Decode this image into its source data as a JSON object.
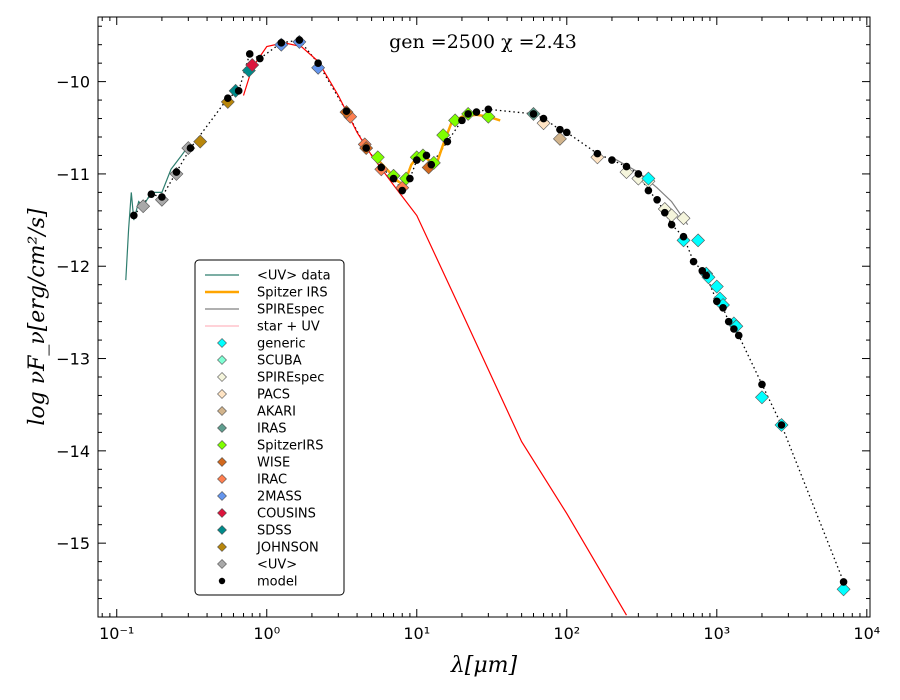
{
  "chart_data": {
    "type": "line",
    "title": "",
    "annotation": "gen =2500  χ =2.43",
    "xlabel": "λ[μm]",
    "ylabel": "log νF_ν[erg/cm²/s]",
    "xscale": "log",
    "xlim": [
      0.075,
      10500
    ],
    "ylim": [
      -15.8,
      -9.3
    ],
    "x_ticks": [
      {
        "value": 0.1,
        "label": "10⁻¹"
      },
      {
        "value": 1,
        "label": "10⁰"
      },
      {
        "value": 10,
        "label": "10¹"
      },
      {
        "value": 100,
        "label": "10²"
      },
      {
        "value": 1000,
        "label": "10³"
      },
      {
        "value": 10000,
        "label": "10⁴"
      }
    ],
    "y_ticks": [
      {
        "value": -10,
        "label": "−10"
      },
      {
        "value": -11,
        "label": "−11"
      },
      {
        "value": -12,
        "label": "−12"
      },
      {
        "value": -13,
        "label": "−13"
      },
      {
        "value": -14,
        "label": "−14"
      },
      {
        "value": -15,
        "label": "−15"
      }
    ],
    "legend_position": "lower-left",
    "legend": [
      {
        "label": "<UV> data",
        "kind": "line",
        "color": "#2e7d6e"
      },
      {
        "label": "Spitzer IRS",
        "kind": "line",
        "color": "#ffa500"
      },
      {
        "label": "SPIREspec",
        "kind": "line",
        "color": "#808080"
      },
      {
        "label": "star + UV",
        "kind": "line",
        "color": "#ffb6c1"
      },
      {
        "label": "generic",
        "kind": "diamond",
        "color": "#00ffff"
      },
      {
        "label": "SCUBA",
        "kind": "diamond",
        "color": "#7fffd4"
      },
      {
        "label": "SPIREspec",
        "kind": "diamond",
        "color": "#f5f5dc"
      },
      {
        "label": "PACS",
        "kind": "diamond",
        "color": "#ffe4c4"
      },
      {
        "label": "AKARI",
        "kind": "diamond",
        "color": "#d2b48c"
      },
      {
        "label": "IRAS",
        "kind": "diamond",
        "color": "#5f9e8f"
      },
      {
        "label": "SpitzerIRS",
        "kind": "diamond",
        "color": "#7fff00"
      },
      {
        "label": "WISE",
        "kind": "diamond",
        "color": "#d2691e"
      },
      {
        "label": "IRAC",
        "kind": "diamond",
        "color": "#ff7f50"
      },
      {
        "label": "2MASS",
        "kind": "diamond",
        "color": "#6495ed"
      },
      {
        "label": "COUSINS",
        "kind": "diamond",
        "color": "#dc143c"
      },
      {
        "label": "SDSS",
        "kind": "diamond",
        "color": "#008b8b"
      },
      {
        "label": "JOHNSON",
        "kind": "diamond",
        "color": "#b8860b"
      },
      {
        "label": "<UV>",
        "kind": "diamond",
        "color": "#a9a9a9"
      },
      {
        "label": "model",
        "kind": "dot",
        "color": "#000000"
      }
    ],
    "series": [
      {
        "name": "model",
        "kind": "dotted-line-points",
        "color": "#000000",
        "points": [
          [
            0.13,
            -11.45
          ],
          [
            0.17,
            -11.22
          ],
          [
            0.2,
            -11.25
          ],
          [
            0.25,
            -10.98
          ],
          [
            0.31,
            -10.72
          ],
          [
            0.55,
            -10.18
          ],
          [
            0.65,
            -10.1
          ],
          [
            0.77,
            -9.7
          ],
          [
            0.9,
            -9.75
          ],
          [
            1.25,
            -9.58
          ],
          [
            1.65,
            -9.55
          ],
          [
            2.2,
            -9.8
          ],
          [
            3.4,
            -10.32
          ],
          [
            4.6,
            -10.72
          ],
          [
            5.8,
            -10.93
          ],
          [
            7,
            -11.05
          ],
          [
            8,
            -11.18
          ],
          [
            9,
            -11.05
          ],
          [
            10,
            -10.85
          ],
          [
            11.6,
            -10.8
          ],
          [
            12.5,
            -10.9
          ],
          [
            16,
            -10.65
          ],
          [
            20,
            -10.42
          ],
          [
            22,
            -10.35
          ],
          [
            25,
            -10.33
          ],
          [
            30,
            -10.3
          ],
          [
            60,
            -10.35
          ],
          [
            70,
            -10.4
          ],
          [
            90,
            -10.52
          ],
          [
            100,
            -10.55
          ],
          [
            160,
            -10.78
          ],
          [
            200,
            -10.85
          ],
          [
            250,
            -10.92
          ],
          [
            300,
            -11.0
          ],
          [
            350,
            -11.18
          ],
          [
            400,
            -11.28
          ],
          [
            450,
            -11.42
          ],
          [
            500,
            -11.55
          ],
          [
            600,
            -11.68
          ],
          [
            700,
            -11.95
          ],
          [
            800,
            -12.05
          ],
          [
            850,
            -12.1
          ],
          [
            1000,
            -12.38
          ],
          [
            1100,
            -12.45
          ],
          [
            1200,
            -12.6
          ],
          [
            1300,
            -12.68
          ],
          [
            1400,
            -12.75
          ],
          [
            2000,
            -13.28
          ],
          [
            2700,
            -13.72
          ],
          [
            7000,
            -15.42
          ]
        ]
      },
      {
        "name": "star + UV",
        "kind": "line",
        "color": "#ff0000",
        "points": [
          [
            0.7,
            -10.15
          ],
          [
            0.8,
            -9.85
          ],
          [
            1.0,
            -9.62
          ],
          [
            1.3,
            -9.58
          ],
          [
            1.7,
            -9.62
          ],
          [
            2.2,
            -9.78
          ],
          [
            3.0,
            -10.15
          ],
          [
            4.0,
            -10.55
          ],
          [
            5.0,
            -10.8
          ],
          [
            7.0,
            -11.12
          ],
          [
            10.0,
            -11.45
          ],
          [
            20.0,
            -12.5
          ],
          [
            50.0,
            -13.9
          ],
          [
            100.0,
            -14.68
          ],
          [
            250.0,
            -15.78
          ]
        ]
      },
      {
        "name": "<UV> data",
        "kind": "line",
        "color": "#2e7d6e",
        "points": [
          [
            0.115,
            -12.15
          ],
          [
            0.12,
            -11.6
          ],
          [
            0.125,
            -11.2
          ],
          [
            0.13,
            -11.5
          ],
          [
            0.14,
            -11.3
          ],
          [
            0.15,
            -11.35
          ],
          [
            0.17,
            -11.2
          ],
          [
            0.2,
            -11.2
          ],
          [
            0.23,
            -10.95
          ],
          [
            0.27,
            -10.8
          ],
          [
            0.3,
            -10.7
          ]
        ]
      },
      {
        "name": "Spitzer IRS",
        "kind": "line",
        "color": "#ffa500",
        "points": [
          [
            5.3,
            -10.82
          ],
          [
            6.5,
            -10.97
          ],
          [
            7.5,
            -11.08
          ],
          [
            8.2,
            -11.12
          ],
          [
            9.2,
            -10.9
          ],
          [
            10.5,
            -10.78
          ],
          [
            12,
            -10.85
          ],
          [
            13.5,
            -10.9
          ],
          [
            15,
            -10.68
          ],
          [
            17,
            -10.45
          ],
          [
            20,
            -10.38
          ],
          [
            25,
            -10.36
          ],
          [
            30,
            -10.38
          ],
          [
            36,
            -10.42
          ]
        ]
      },
      {
        "name": "SPIREspec",
        "kind": "line",
        "color": "#808080",
        "points": [
          [
            200,
            -10.82
          ],
          [
            300,
            -10.98
          ],
          [
            400,
            -11.15
          ],
          [
            500,
            -11.3
          ],
          [
            640,
            -11.55
          ]
        ]
      }
    ],
    "markers": [
      {
        "group": "<UV>",
        "color": "#a9a9a9",
        "points": [
          [
            0.15,
            -11.35
          ],
          [
            0.2,
            -11.28
          ],
          [
            0.25,
            -11.0
          ],
          [
            0.3,
            -10.72
          ]
        ]
      },
      {
        "group": "JOHNSON",
        "color": "#b8860b",
        "points": [
          [
            0.36,
            -10.65
          ],
          [
            0.55,
            -10.22
          ]
        ]
      },
      {
        "group": "SDSS",
        "color": "#008b8b",
        "points": [
          [
            0.62,
            -10.1
          ],
          [
            0.76,
            -9.88
          ]
        ]
      },
      {
        "group": "COUSINS",
        "color": "#dc143c",
        "points": [
          [
            0.8,
            -9.82
          ]
        ]
      },
      {
        "group": "2MASS",
        "color": "#6495ed",
        "points": [
          [
            1.25,
            -9.6
          ],
          [
            1.65,
            -9.57
          ],
          [
            2.2,
            -9.85
          ]
        ]
      },
      {
        "group": "IRAC",
        "color": "#ff7f50",
        "points": [
          [
            3.6,
            -10.38
          ],
          [
            4.5,
            -10.68
          ],
          [
            5.8,
            -10.95
          ],
          [
            8.0,
            -11.15
          ]
        ]
      },
      {
        "group": "WISE",
        "color": "#d2691e",
        "points": [
          [
            3.4,
            -10.33
          ],
          [
            4.6,
            -10.72
          ],
          [
            12,
            -10.93
          ]
        ]
      },
      {
        "group": "SpitzerIRS",
        "color": "#7fff00",
        "points": [
          [
            5.5,
            -10.82
          ],
          [
            7.0,
            -11.02
          ],
          [
            8.5,
            -11.05
          ],
          [
            10,
            -10.82
          ],
          [
            11,
            -10.8
          ],
          [
            13,
            -10.88
          ],
          [
            15,
            -10.58
          ],
          [
            18,
            -10.42
          ],
          [
            22,
            -10.35
          ],
          [
            30,
            -10.38
          ]
        ]
      },
      {
        "group": "IRAS",
        "color": "#5f9e8f",
        "points": [
          [
            60,
            -10.35
          ]
        ]
      },
      {
        "group": "AKARI",
        "color": "#d2b48c",
        "points": [
          [
            90,
            -10.62
          ]
        ]
      },
      {
        "group": "PACS",
        "color": "#ffe4c4",
        "points": [
          [
            70,
            -10.45
          ],
          [
            160,
            -10.82
          ]
        ]
      },
      {
        "group": "SPIREspec",
        "color": "#f5f5dc",
        "points": [
          [
            250,
            -10.98
          ],
          [
            300,
            -11.05
          ],
          [
            350,
            -11.08
          ],
          [
            450,
            -11.38
          ],
          [
            500,
            -11.45
          ],
          [
            600,
            -11.48
          ]
        ]
      },
      {
        "group": "generic",
        "color": "#00ffff",
        "points": [
          [
            350,
            -11.05
          ],
          [
            600,
            -11.72
          ],
          [
            750,
            -11.72
          ],
          [
            850,
            -12.08
          ],
          [
            880,
            -12.12
          ],
          [
            1000,
            -12.22
          ],
          [
            1050,
            -12.35
          ],
          [
            1100,
            -12.42
          ],
          [
            1300,
            -12.62
          ],
          [
            1350,
            -12.65
          ],
          [
            2000,
            -13.42
          ],
          [
            2700,
            -13.72
          ],
          [
            7000,
            -15.5
          ]
        ]
      }
    ]
  }
}
